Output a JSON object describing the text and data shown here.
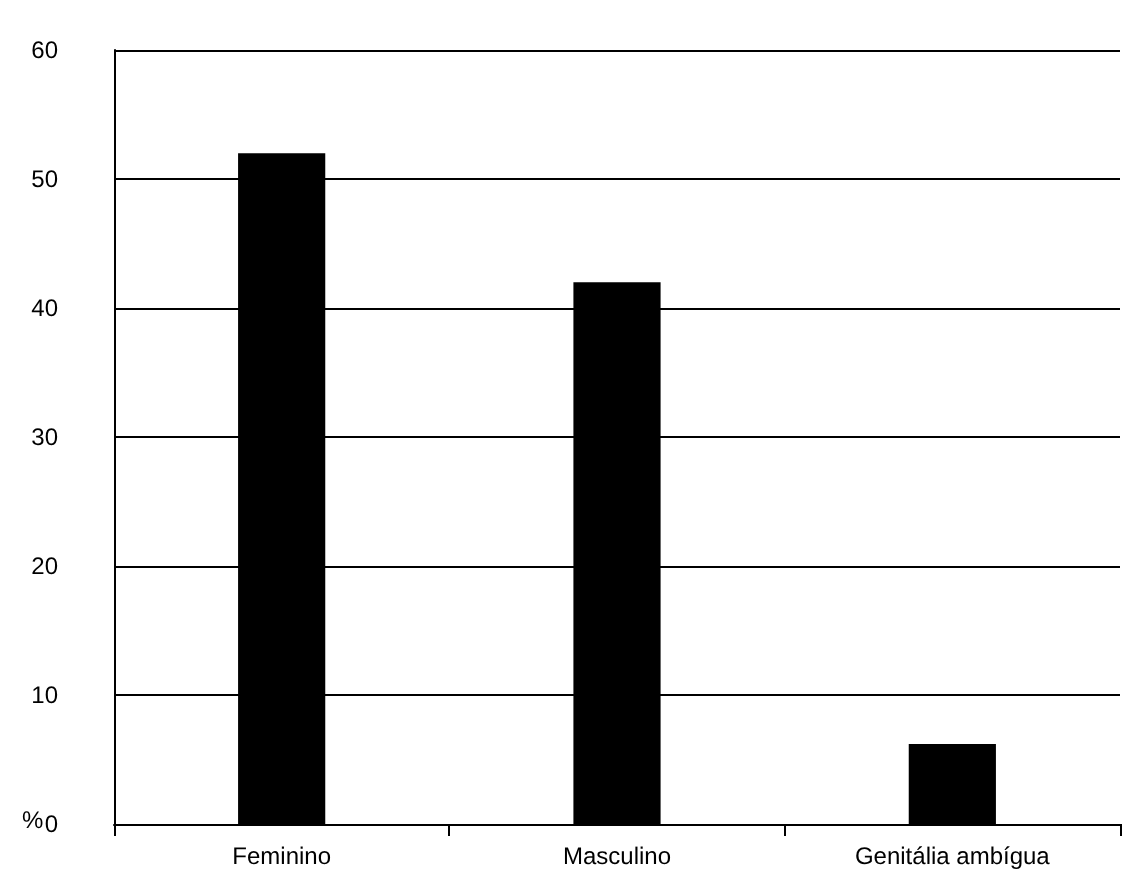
{
  "chart_data": {
    "type": "bar",
    "ylabel": "%",
    "categories": [
      "Feminino",
      "Masculino",
      "Genitália ambígua"
    ],
    "values": [
      52,
      42,
      6.2
    ],
    "color": "#000000",
    "ylim": [
      0,
      60
    ],
    "yticks": [
      0,
      10,
      20,
      30,
      40,
      50,
      60
    ],
    "grid": "y"
  }
}
